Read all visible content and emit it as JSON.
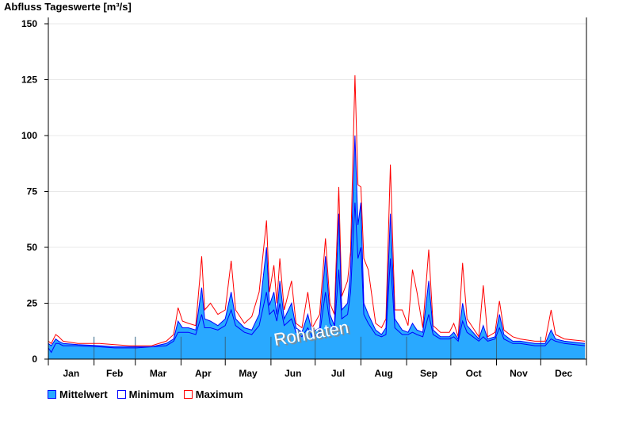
{
  "chart_data": {
    "type": "area",
    "title": "Abfluss Tageswerte [m³/s]",
    "xlabel": "",
    "ylabel": "Abfluss Tageswerte [m³/s]",
    "ylim": [
      0,
      150
    ],
    "yticks": [
      0,
      25,
      50,
      75,
      100,
      125,
      150
    ],
    "xlim": [
      0,
      365
    ],
    "months": [
      "Jan",
      "Feb",
      "Mar",
      "Apr",
      "May",
      "Jun",
      "Jul",
      "Aug",
      "Sep",
      "Oct",
      "Nov",
      "Dec"
    ],
    "month_starts": [
      0,
      31,
      59,
      90,
      120,
      151,
      181,
      212,
      243,
      273,
      304,
      334,
      365
    ],
    "grid": true,
    "legend_position": "bottom-left",
    "watermark": "Rohdaten",
    "x": [
      0,
      2,
      5,
      7,
      10,
      20,
      35,
      45,
      55,
      60,
      70,
      80,
      85,
      88,
      91,
      95,
      100,
      104,
      106,
      110,
      115,
      120,
      124,
      127,
      133,
      138,
      143,
      148,
      150,
      153,
      155,
      157,
      160,
      165,
      168,
      172,
      176,
      179,
      184,
      188,
      191,
      194,
      197,
      199,
      203,
      205,
      208,
      210,
      212,
      214,
      217,
      222,
      226,
      229,
      232,
      235,
      240,
      244,
      247,
      250,
      254,
      258,
      261,
      266,
      272,
      275,
      278,
      281,
      284,
      288,
      292,
      295,
      298,
      303,
      306,
      309,
      315,
      320,
      330,
      337,
      341,
      344,
      350,
      364
    ],
    "series": [
      {
        "name": "Mittelwert",
        "color": "#29a9ff",
        "values": [
          7,
          6,
          9,
          8,
          7,
          6.5,
          6,
          5.5,
          5.5,
          5.5,
          5.5,
          7,
          9,
          17,
          14,
          14,
          13,
          32,
          18,
          17,
          15,
          18,
          30,
          18,
          14,
          13,
          20,
          50,
          24,
          30,
          20,
          35,
          18,
          25,
          14,
          12,
          20,
          12,
          14,
          46,
          20,
          15,
          65,
          22,
          25,
          40,
          100,
          60,
          70,
          25,
          20,
          13,
          11,
          14,
          65,
          18,
          13,
          12,
          16,
          13,
          12,
          35,
          13,
          10,
          10,
          12,
          9,
          25,
          15,
          12,
          9,
          15,
          9,
          10,
          20,
          11,
          8,
          8,
          7,
          7,
          13,
          9,
          8,
          7
        ]
      },
      {
        "name": "Minimum",
        "color": "#0000ff",
        "values": [
          5,
          3,
          7,
          7,
          6,
          6,
          5.5,
          5,
          5,
          5,
          5.5,
          6,
          8,
          12,
          12,
          12,
          11,
          20,
          14,
          14,
          13,
          15,
          22,
          15,
          12,
          11,
          15,
          30,
          20,
          22,
          17,
          25,
          15,
          18,
          12,
          10,
          14,
          10,
          11,
          30,
          16,
          13,
          40,
          18,
          20,
          30,
          70,
          45,
          50,
          20,
          16,
          11,
          10,
          11,
          45,
          14,
          11,
          11,
          12,
          11,
          10,
          20,
          11,
          9,
          9,
          10,
          8,
          17,
          12,
          10,
          8,
          10,
          8,
          9,
          14,
          9,
          7,
          7,
          6,
          6,
          9,
          8,
          7,
          6
        ]
      },
      {
        "name": "Maximum",
        "color": "#ff0000",
        "values": [
          8,
          7,
          11,
          10,
          8,
          7,
          7,
          6.5,
          6,
          6,
          6,
          8,
          11,
          23,
          17,
          16,
          15,
          46,
          22,
          25,
          20,
          22,
          44,
          22,
          16,
          19,
          30,
          62,
          30,
          42,
          25,
          45,
          22,
          35,
          16,
          14,
          30,
          14,
          20,
          54,
          25,
          20,
          77,
          28,
          35,
          48,
          127,
          78,
          77,
          45,
          40,
          16,
          14,
          18,
          87,
          22,
          22,
          15,
          40,
          30,
          14,
          49,
          15,
          12,
          12,
          16,
          10,
          43,
          18,
          14,
          10,
          33,
          10,
          12,
          26,
          13,
          10,
          9,
          8,
          8,
          22,
          11,
          9,
          8
        ]
      }
    ]
  }
}
